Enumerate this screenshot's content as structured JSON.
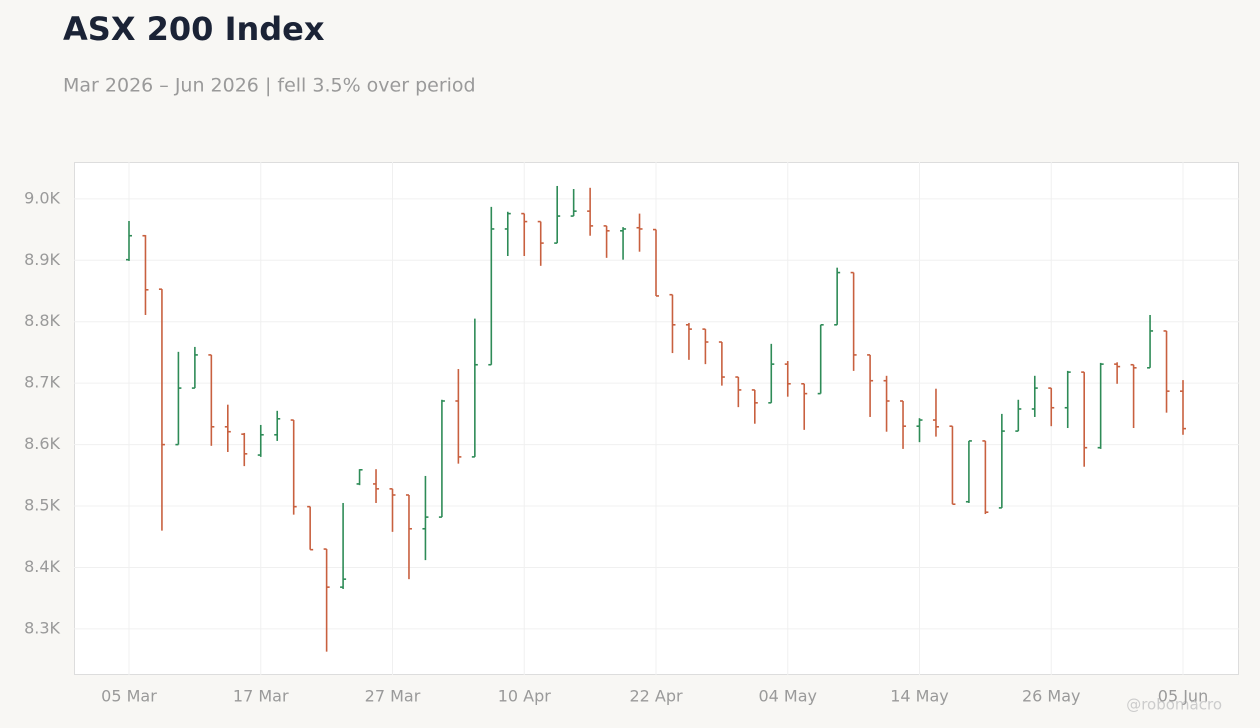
{
  "chart_data": {
    "type": "ohlc",
    "title": "ASX 200 Index",
    "subtitle": "Mar 2026 – Jun 2026 | fell 3.5% over period",
    "watermark": "@robomacro",
    "categories": [
      "05 Mar",
      null,
      null,
      null,
      null,
      null,
      null,
      null,
      "17 Mar",
      null,
      null,
      null,
      null,
      null,
      null,
      null,
      "27 Mar",
      null,
      null,
      null,
      null,
      null,
      null,
      null,
      "10 Apr",
      null,
      null,
      null,
      null,
      null,
      null,
      null,
      "22 Apr",
      null,
      null,
      null,
      null,
      null,
      null,
      null,
      "04 May",
      null,
      null,
      null,
      null,
      null,
      null,
      null,
      "14 May",
      null,
      null,
      null,
      null,
      null,
      null,
      null,
      "26 May",
      null,
      null,
      null,
      null,
      null,
      null,
      null,
      "05 Jun"
    ],
    "open": [
      8901,
      8940,
      8853,
      8600,
      8692,
      8746,
      8629,
      8617,
      8583,
      8616,
      8640,
      8499,
      8430,
      8368,
      8536,
      8536,
      8528,
      8518,
      8463,
      8482,
      8671,
      8580,
      8730,
      8951,
      8976,
      8963,
      8928,
      8972,
      8980,
      8956,
      8948,
      8953,
      8950,
      8844,
      8795,
      8788,
      8767,
      8710,
      8689,
      8668,
      8731,
      8699,
      8683,
      8795,
      8880,
      8746,
      8704,
      8671,
      8630,
      8640,
      8630,
      8507,
      8606,
      8497,
      8622,
      8658,
      8692,
      8660,
      8718,
      8595,
      8731,
      8730,
      8725,
      8785,
      8687
    ],
    "high": [
      8964,
      8941,
      8853,
      8751,
      8759,
      8746,
      8665,
      8619,
      8632,
      8655,
      8640,
      8499,
      8430,
      8505,
      8560,
      8560,
      8528,
      8518,
      8549,
      8673,
      8723,
      8805,
      8987,
      8979,
      8976,
      8963,
      9021,
      9016,
      9018,
      8956,
      8954,
      8976,
      8950,
      8844,
      8798,
      8788,
      8767,
      8710,
      8689,
      8764,
      8736,
      8699,
      8795,
      8888,
      8880,
      8746,
      8712,
      8671,
      8643,
      8691,
      8630,
      8606,
      8606,
      8650,
      8673,
      8712,
      8692,
      8720,
      8718,
      8733,
      8734,
      8730,
      8811,
      8785,
      8705
    ],
    "low": [
      8899,
      8811,
      8460,
      8600,
      8692,
      8598,
      8588,
      8565,
      8580,
      8606,
      8486,
      8429,
      8263,
      8365,
      8534,
      8505,
      8458,
      8381,
      8412,
      8482,
      8569,
      8580,
      8730,
      8907,
      8907,
      8891,
      8928,
      8972,
      8940,
      8904,
      8901,
      8914,
      8842,
      8749,
      8738,
      8731,
      8696,
      8661,
      8634,
      8668,
      8678,
      8624,
      8683,
      8795,
      8720,
      8645,
      8621,
      8593,
      8604,
      8613,
      8503,
      8505,
      8487,
      8497,
      8622,
      8645,
      8630,
      8627,
      8564,
      8593,
      8699,
      8627,
      8725,
      8652,
      8616
    ],
    "close": [
      8940,
      8852,
      8600,
      8692,
      8746,
      8629,
      8621,
      8585,
      8616,
      8642,
      8499,
      8429,
      8368,
      8381,
      8559,
      8528,
      8518,
      8463,
      8482,
      8671,
      8580,
      8730,
      8951,
      8976,
      8963,
      8928,
      8972,
      8980,
      8956,
      8948,
      8951,
      8951,
      8842,
      8795,
      8788,
      8767,
      8710,
      8689,
      8668,
      8731,
      8699,
      8683,
      8795,
      8880,
      8746,
      8704,
      8671,
      8630,
      8640,
      8629,
      8503,
      8606,
      8490,
      8622,
      8658,
      8692,
      8660,
      8718,
      8595,
      8731,
      8727,
      8725,
      8785,
      8687,
      8626
    ],
    "up_color": "#2e8b57",
    "down_color": "#c8603f",
    "ylim": [
      8225,
      9060
    ],
    "yticks": [
      {
        "value": 8300,
        "label": "8.3K"
      },
      {
        "value": 8400,
        "label": "8.4K"
      },
      {
        "value": 8500,
        "label": "8.5K"
      },
      {
        "value": 8600,
        "label": "8.6K"
      },
      {
        "value": 8700,
        "label": "8.7K"
      },
      {
        "value": 8800,
        "label": "8.8K"
      },
      {
        "value": 8900,
        "label": "8.9K"
      },
      {
        "value": 9000,
        "label": "9.0K"
      }
    ],
    "grid": true
  }
}
